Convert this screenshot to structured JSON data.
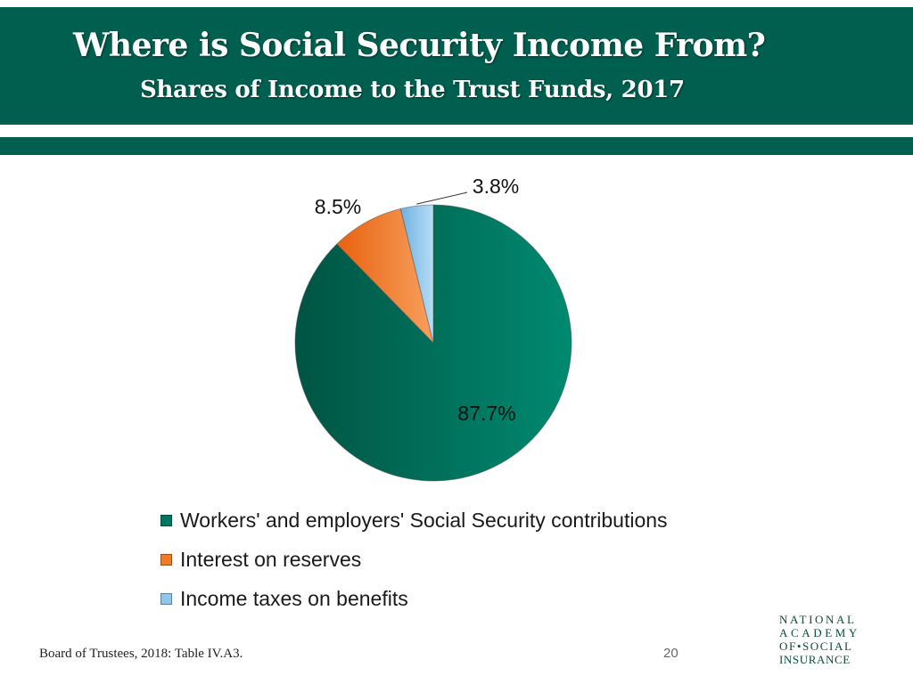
{
  "header": {
    "title": "Where is Social Security Income From?",
    "subtitle": "Shares of Income to the Trust Funds, 2017"
  },
  "chart_data": {
    "type": "pie",
    "slices": [
      {
        "name": "Workers' and employers' Social Security contributions",
        "value": 87.7,
        "label": "87.7%",
        "color": "#00755f"
      },
      {
        "name": "Interest on reserves",
        "value": 8.5,
        "label": "8.5%",
        "color": "#f07a28"
      },
      {
        "name": "Income taxes on benefits",
        "value": 3.8,
        "label": "3.8%",
        "color": "#8ec6ec"
      }
    ],
    "legend_position": "bottom"
  },
  "footer": {
    "source": "Board of Trustees, 2018: Table IV.A3.",
    "page_number": "20",
    "logo_lines": [
      "NATIONAL",
      "ACADEMY",
      "OF•SOCIAL",
      "INSURANCE"
    ]
  }
}
